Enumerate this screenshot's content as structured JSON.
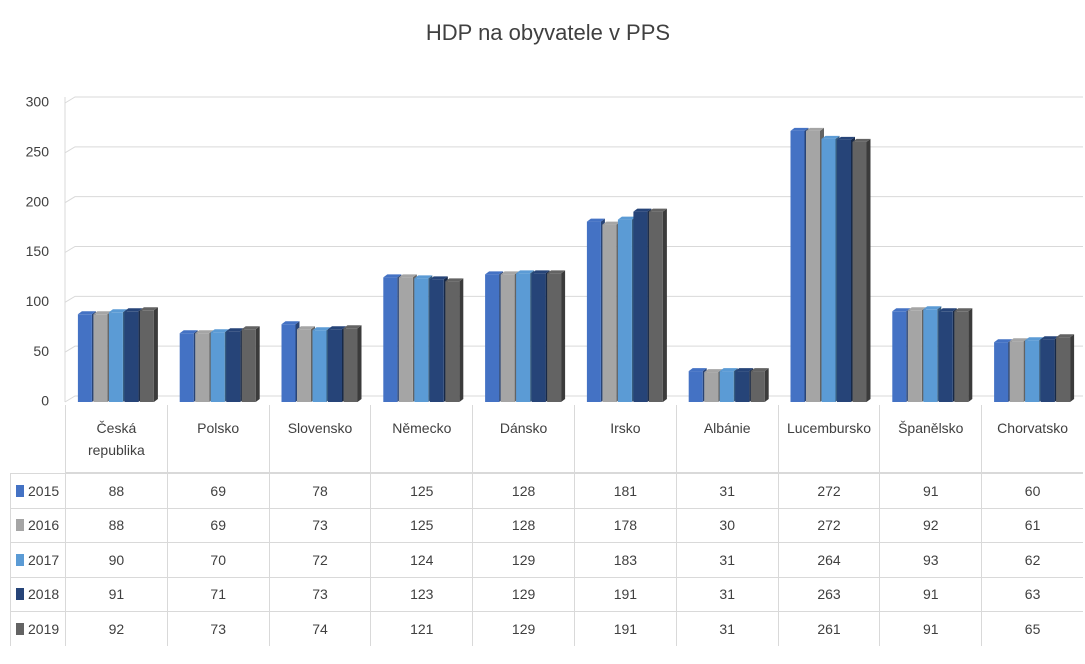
{
  "chart_data": {
    "type": "bar",
    "title": "HDP na obyvatele v PPS",
    "categories": [
      "Česká republika",
      "Polsko",
      "Slovensko",
      "Německo",
      "Dánsko",
      "Irsko",
      "Albánie",
      "Lucembursko",
      "Španělsko",
      "Chorvatsko"
    ],
    "series": [
      {
        "name": "2015",
        "color": "#4472c4",
        "values": [
          88,
          69,
          78,
          125,
          128,
          181,
          31,
          272,
          91,
          60
        ]
      },
      {
        "name": "2016",
        "color": "#a5a5a5",
        "values": [
          88,
          69,
          73,
          125,
          128,
          178,
          30,
          272,
          92,
          61
        ]
      },
      {
        "name": "2017",
        "color": "#5b9bd5",
        "values": [
          90,
          70,
          72,
          124,
          129,
          183,
          31,
          264,
          93,
          62
        ]
      },
      {
        "name": "2018",
        "color": "#264478",
        "values": [
          91,
          71,
          73,
          123,
          129,
          191,
          31,
          263,
          91,
          63
        ]
      },
      {
        "name": "2019",
        "color": "#636363",
        "values": [
          92,
          73,
          74,
          121,
          129,
          191,
          31,
          261,
          91,
          65
        ]
      }
    ],
    "ylim": [
      0,
      300
    ],
    "yticks": [
      0,
      50,
      100,
      150,
      200,
      250,
      300
    ],
    "grid": true,
    "data_table": true
  }
}
